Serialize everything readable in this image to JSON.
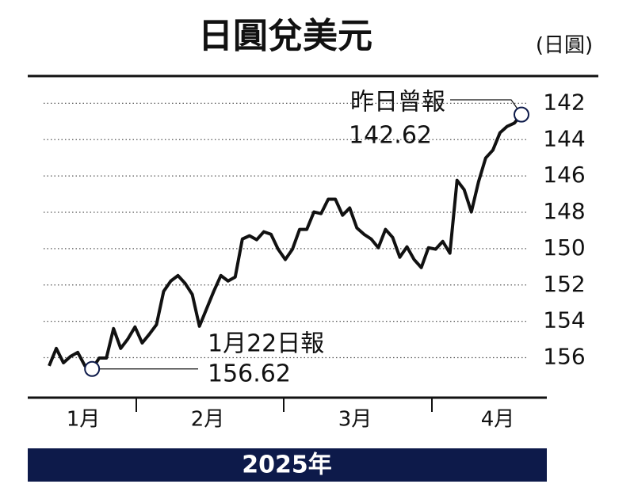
{
  "chart_data": {
    "type": "line",
    "title": "日圓兌美元",
    "unit": "(日圓)",
    "values": [
      156.45,
      155.49,
      156.28,
      155.93,
      155.71,
      156.45,
      156.62,
      156.02,
      156.02,
      154.4,
      155.49,
      154.97,
      154.31,
      155.19,
      154.71,
      154.18,
      152.35,
      151.78,
      151.48,
      151.91,
      152.52,
      154.27,
      153.31,
      152.35,
      151.48,
      151.78,
      151.56,
      149.47,
      149.29,
      149.51,
      149.07,
      149.21,
      150.03,
      150.6,
      150.03,
      148.94,
      148.94,
      147.98,
      148.07,
      147.28,
      147.28,
      148.16,
      147.76,
      148.86,
      149.21,
      149.47,
      149.95,
      148.94,
      149.38,
      150.47,
      149.9,
      150.6,
      151.04,
      149.95,
      150.03,
      149.6,
      150.25,
      146.24,
      146.76,
      147.98,
      146.32,
      145.01,
      144.58,
      143.62,
      143.27,
      143.09,
      142.62
    ],
    "color": "#111111",
    "months": [
      "1月",
      "2月",
      "3月",
      "4月"
    ],
    "ylim": [
      158.2,
      140.5
    ],
    "yticks": [
      142,
      144,
      146,
      148,
      150,
      152,
      154,
      156
    ],
    "grid": true,
    "annotations": [
      {
        "label": "1月22日報",
        "value": 156.62
      },
      {
        "label": "昨日曾報",
        "value": 142.62
      }
    ],
    "footer": "2025年"
  }
}
